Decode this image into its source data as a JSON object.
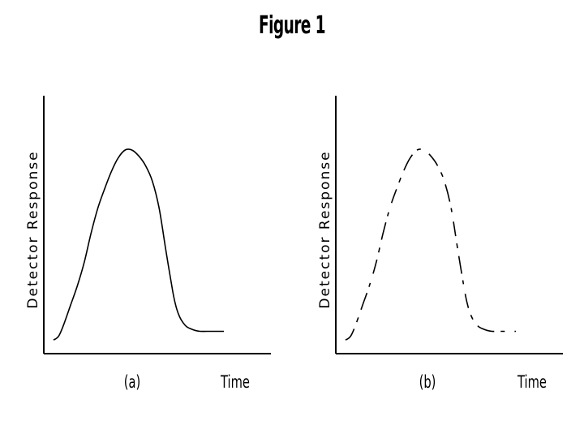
{
  "title": "Figure 1",
  "chart_data": [
    {
      "type": "line",
      "panel_label": "(a)",
      "ylabel": "Detector Response",
      "xlabel": "Time",
      "line_style": "solid",
      "x": [
        0,
        0.03,
        0.06,
        0.1,
        0.14,
        0.18,
        0.22,
        0.26,
        0.3,
        0.34,
        0.38,
        0.42,
        0.46,
        0.5,
        0.54,
        0.58,
        0.62,
        0.66,
        0.7,
        0.72,
        0.74,
        0.76,
        0.78,
        0.8,
        0.83,
        0.86,
        0.9,
        0.95,
        1.0
      ],
      "y": [
        0.02,
        0.04,
        0.1,
        0.2,
        0.3,
        0.42,
        0.57,
        0.7,
        0.8,
        0.89,
        0.96,
        1.0,
        1.0,
        0.97,
        0.92,
        0.84,
        0.7,
        0.48,
        0.27,
        0.19,
        0.14,
        0.11,
        0.09,
        0.08,
        0.07,
        0.065,
        0.065,
        0.065,
        0.065
      ],
      "grid": false
    },
    {
      "type": "line",
      "panel_label": "(b)",
      "ylabel": "Detector Response",
      "xlabel": "Time",
      "line_style": "broken",
      "x": [
        0,
        0.03,
        0.06,
        0.1,
        0.14,
        0.18,
        0.22,
        0.26,
        0.3,
        0.34,
        0.38,
        0.42,
        0.46,
        0.5,
        0.54,
        0.58,
        0.62,
        0.66,
        0.7,
        0.72,
        0.74,
        0.76,
        0.78,
        0.8,
        0.83,
        0.86,
        0.9,
        0.95,
        1.0
      ],
      "y": [
        0.02,
        0.04,
        0.1,
        0.2,
        0.3,
        0.42,
        0.57,
        0.7,
        0.8,
        0.89,
        0.96,
        1.0,
        1.0,
        0.97,
        0.92,
        0.84,
        0.7,
        0.48,
        0.27,
        0.19,
        0.14,
        0.11,
        0.09,
        0.08,
        0.07,
        0.065,
        0.065,
        0.065,
        0.065
      ],
      "grid": false
    }
  ]
}
